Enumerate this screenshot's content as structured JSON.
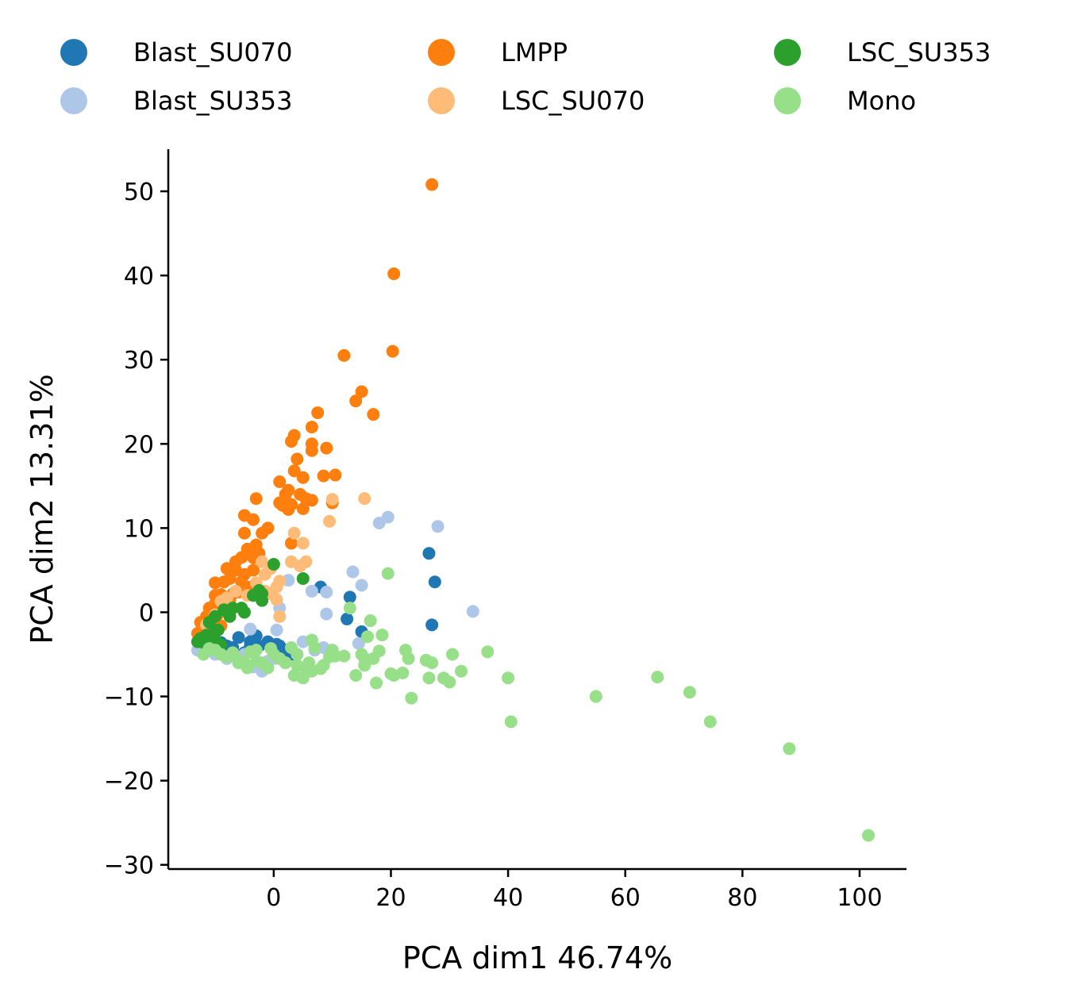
{
  "chart_data": {
    "type": "scatter",
    "xlabel": "PCA dim1 46.74%",
    "ylabel": "PCA dim2 13.31%",
    "xlim": [
      -18,
      108
    ],
    "ylim": [
      -30.5,
      55
    ],
    "xticks": [
      0,
      20,
      40,
      60,
      80,
      100
    ],
    "yticks": [
      -30,
      -20,
      -10,
      0,
      10,
      20,
      30,
      40,
      50
    ],
    "xtick_labels": [
      "0",
      "20",
      "40",
      "60",
      "80",
      "100"
    ],
    "ytick_labels": [
      "−30",
      "−20",
      "−10",
      "0",
      "10",
      "20",
      "30",
      "40",
      "50"
    ],
    "grid": false,
    "legend_position": "top",
    "series": [
      {
        "name": "Blast_SU070",
        "color": "#1f77b4",
        "points": [
          [
            -3.5,
            -3.2
          ],
          [
            -4,
            -3.5
          ],
          [
            -1,
            -3.5
          ],
          [
            -2.5,
            -4
          ],
          [
            1,
            -4
          ],
          [
            -6,
            -3
          ],
          [
            -8,
            -4
          ],
          [
            -10,
            -4.5
          ],
          [
            -11,
            -4
          ],
          [
            -12,
            -4.8
          ],
          [
            -7,
            -4.2
          ],
          [
            -5,
            -4.8
          ],
          [
            2,
            -4.5
          ],
          [
            3,
            -5
          ],
          [
            8,
            3
          ],
          [
            13,
            1.8
          ],
          [
            12.5,
            -0.8
          ],
          [
            15,
            -2.3
          ],
          [
            26.5,
            7
          ],
          [
            27.5,
            3.6
          ],
          [
            27,
            -1.5
          ],
          [
            -9,
            -3.6
          ],
          [
            -3,
            -2.8
          ],
          [
            0.5,
            -3.8
          ],
          [
            -4,
            -4
          ]
        ]
      },
      {
        "name": "Blast_SU353",
        "color": "#aec7e8",
        "points": [
          [
            28,
            10.2
          ],
          [
            19.5,
            11.3
          ],
          [
            18,
            10.6
          ],
          [
            13.5,
            4.8
          ],
          [
            15,
            3.2
          ],
          [
            9,
            2.4
          ],
          [
            6.5,
            2.5
          ],
          [
            34,
            0.1
          ],
          [
            1,
            0.5
          ],
          [
            9,
            -0.2
          ],
          [
            -13,
            -4.5
          ],
          [
            -10,
            -5
          ],
          [
            -5,
            -5
          ],
          [
            -2,
            -7
          ],
          [
            0,
            -5.5
          ],
          [
            2,
            -6
          ],
          [
            4,
            -5
          ],
          [
            7,
            -4.5
          ],
          [
            8.5,
            -4.2
          ],
          [
            14.5,
            -3.7
          ],
          [
            -8,
            -5.5
          ],
          [
            -6,
            -6
          ],
          [
            -3.5,
            -6.5
          ],
          [
            2.5,
            3.8
          ],
          [
            0.5,
            -2.1
          ],
          [
            -4,
            -2
          ],
          [
            -11,
            -3.6
          ],
          [
            15.5,
            -5.5
          ],
          [
            5,
            -3.5
          ],
          [
            -1,
            -5.8
          ]
        ]
      },
      {
        "name": "LMPP",
        "color": "#ff7f0e",
        "points": [
          [
            27,
            50.8
          ],
          [
            20.5,
            40.2
          ],
          [
            20.3,
            31
          ],
          [
            12,
            30.5
          ],
          [
            15,
            26.2
          ],
          [
            14,
            25.1
          ],
          [
            17,
            23.5
          ],
          [
            7.5,
            23.7
          ],
          [
            3.5,
            21
          ],
          [
            3,
            20.3
          ],
          [
            6.5,
            22
          ],
          [
            6.5,
            20
          ],
          [
            6.5,
            19.2
          ],
          [
            9,
            19.5
          ],
          [
            4,
            18.2
          ],
          [
            3.5,
            16.8
          ],
          [
            1,
            15.5
          ],
          [
            2.5,
            14.5
          ],
          [
            5,
            16
          ],
          [
            8.5,
            16.2
          ],
          [
            10.5,
            16.3
          ],
          [
            2,
            14
          ],
          [
            4.5,
            14
          ],
          [
            5.5,
            13.5
          ],
          [
            6.5,
            13.3
          ],
          [
            10,
            13
          ],
          [
            -3,
            13.5
          ],
          [
            1,
            13
          ],
          [
            3,
            12.8
          ],
          [
            2.5,
            12.2
          ],
          [
            5,
            12.3
          ],
          [
            1.5,
            12.7
          ],
          [
            -5,
            11.5
          ],
          [
            -3.5,
            11
          ],
          [
            -1,
            10
          ],
          [
            -2,
            9.4
          ],
          [
            -5,
            9.4
          ],
          [
            -4.5,
            7.5
          ],
          [
            -2.5,
            7
          ],
          [
            -3,
            8
          ],
          [
            -3.5,
            6.5
          ],
          [
            -5.5,
            6.5
          ],
          [
            -6.5,
            6
          ],
          [
            -8,
            5.2
          ],
          [
            -6.5,
            5
          ],
          [
            -3.5,
            5
          ],
          [
            -5,
            4.5
          ],
          [
            -7.5,
            4
          ],
          [
            -8.5,
            3.6
          ],
          [
            -10,
            3.5
          ],
          [
            -4,
            3
          ],
          [
            -6,
            2.4
          ],
          [
            -7,
            2.2
          ],
          [
            -9,
            2.1
          ],
          [
            -10,
            2
          ],
          [
            -7.5,
            1.5
          ],
          [
            -10,
            1
          ],
          [
            -8.5,
            0.6
          ],
          [
            -11,
            0.5
          ],
          [
            -9.5,
            -0.2
          ],
          [
            -11.5,
            -0.5
          ],
          [
            -10.5,
            -1
          ],
          [
            -12.5,
            -1.2
          ],
          [
            -9,
            -1.6
          ],
          [
            -11.5,
            -2
          ],
          [
            -13,
            -2.5
          ],
          [
            3,
            8.2
          ],
          [
            -5.5,
            3.6
          ]
        ]
      },
      {
        "name": "LSC_SU070",
        "color": "#ffbb78",
        "points": [
          [
            15.5,
            13.5
          ],
          [
            10,
            13.4
          ],
          [
            9.5,
            10.8
          ],
          [
            3.5,
            9.4
          ],
          [
            5,
            8.2
          ],
          [
            3,
            6
          ],
          [
            5.5,
            6
          ],
          [
            4.5,
            5.5
          ],
          [
            -2,
            6
          ],
          [
            -0.5,
            5.2
          ],
          [
            -1.5,
            4.5
          ],
          [
            1,
            3.7
          ],
          [
            0.5,
            3
          ],
          [
            -0.5,
            2.2
          ],
          [
            -3,
            3.5
          ],
          [
            -1.5,
            2.5
          ],
          [
            -4.5,
            2
          ],
          [
            -6.5,
            2.5
          ],
          [
            -8,
            1.7
          ],
          [
            -9,
            1.3
          ],
          [
            0.5,
            1.5
          ],
          [
            1,
            -0.5
          ],
          [
            -10,
            -0.3
          ],
          [
            -11.5,
            -1.5
          ]
        ]
      },
      {
        "name": "LSC_SU353",
        "color": "#2ca02c",
        "points": [
          [
            0,
            5.7
          ],
          [
            5,
            4
          ],
          [
            -2.5,
            2.6
          ],
          [
            -2,
            2.2
          ],
          [
            -3.5,
            2
          ],
          [
            -2,
            1.4
          ],
          [
            -5.5,
            0.5
          ],
          [
            -7,
            0.5
          ],
          [
            -8.5,
            0.3
          ],
          [
            -5,
            0
          ],
          [
            -7.5,
            -0.5
          ],
          [
            -10,
            -0.5
          ],
          [
            -11,
            -1.2
          ],
          [
            -9.5,
            -2.1
          ],
          [
            -11.5,
            -2.7
          ],
          [
            -10.5,
            -2.6
          ],
          [
            -12,
            -3.2
          ],
          [
            -13,
            -3.5
          ],
          [
            -10,
            -3.3
          ],
          [
            -9,
            -3.9
          ],
          [
            -11.5,
            -4
          ],
          [
            -12.5,
            -3.1
          ]
        ]
      },
      {
        "name": "Mono",
        "color": "#98df8a",
        "points": [
          [
            101.5,
            -26.5
          ],
          [
            88,
            -16.2
          ],
          [
            74.5,
            -13
          ],
          [
            71,
            -9.5
          ],
          [
            65.5,
            -7.7
          ],
          [
            55,
            -10
          ],
          [
            40.5,
            -13
          ],
          [
            40,
            -7.8
          ],
          [
            36.5,
            -4.7
          ],
          [
            32,
            -7
          ],
          [
            30.5,
            -5
          ],
          [
            30,
            -8.3
          ],
          [
            29,
            -7.8
          ],
          [
            27,
            -6
          ],
          [
            26.5,
            -7.8
          ],
          [
            26,
            -5.7
          ],
          [
            23.5,
            -10.2
          ],
          [
            23,
            -5.5
          ],
          [
            22.5,
            -4.5
          ],
          [
            22,
            -7.2
          ],
          [
            20.5,
            -7.5
          ],
          [
            20,
            -7.3
          ],
          [
            19.5,
            4.6
          ],
          [
            18.5,
            -2.7
          ],
          [
            18,
            -4.6
          ],
          [
            17.5,
            -8.4
          ],
          [
            17,
            -5.5
          ],
          [
            16,
            -2.9
          ],
          [
            15,
            -5
          ],
          [
            14,
            -7.5
          ],
          [
            13,
            0.5
          ],
          [
            12,
            -5.2
          ],
          [
            10.5,
            -5.2
          ],
          [
            9.5,
            -5.3
          ],
          [
            8,
            -6.7
          ],
          [
            7,
            -4.2
          ],
          [
            6.5,
            -3.3
          ],
          [
            6,
            -6
          ],
          [
            5.5,
            -6.8
          ],
          [
            5,
            -7.8
          ],
          [
            4,
            -6.3
          ],
          [
            3.5,
            -7.5
          ],
          [
            3,
            -4.2
          ],
          [
            2,
            -6
          ],
          [
            1,
            -5.5
          ],
          [
            0,
            -5
          ],
          [
            -0.5,
            -4.3
          ],
          [
            -1,
            -6.6
          ],
          [
            -2,
            -6
          ],
          [
            -3,
            -5.8
          ],
          [
            -4,
            -4.7
          ],
          [
            -4.5,
            -6.6
          ],
          [
            -5,
            -6
          ],
          [
            -6,
            -5.7
          ],
          [
            -7,
            -4.8
          ],
          [
            -8,
            -5.3
          ],
          [
            -9,
            -5
          ],
          [
            -10,
            -4.5
          ],
          [
            -11,
            -4.3
          ],
          [
            15.5,
            -6.3
          ],
          [
            16.5,
            -1
          ],
          [
            6.5,
            -7
          ],
          [
            8.5,
            -6.3
          ],
          [
            4,
            -5
          ],
          [
            -6,
            -6
          ],
          [
            -3,
            -4.5
          ],
          [
            10,
            -4.5
          ],
          [
            -12,
            -5
          ]
        ]
      }
    ]
  }
}
